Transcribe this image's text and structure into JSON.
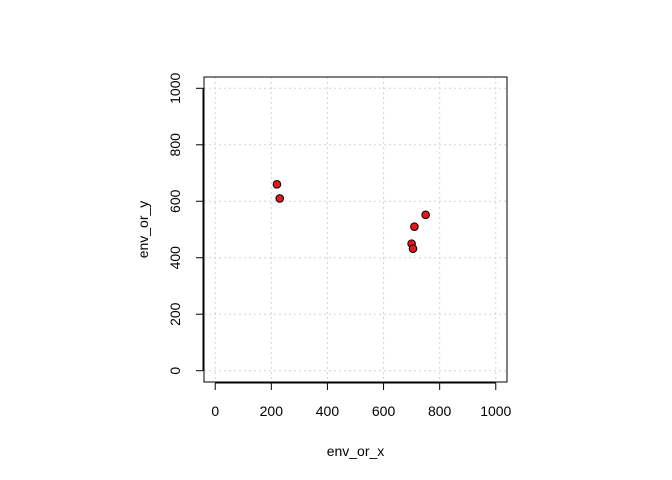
{
  "chart_data": {
    "type": "scatter",
    "title": "",
    "xlabel": "env_or_x",
    "ylabel": "env_or_y",
    "xlim": [
      -40,
      1040
    ],
    "ylim": [
      -40,
      1040
    ],
    "x_ticks": [
      0,
      200,
      400,
      600,
      800,
      1000
    ],
    "y_ticks": [
      0,
      200,
      400,
      600,
      800,
      1000
    ],
    "grid": true,
    "point_color": "#e8161c",
    "point_edge_color": "#000000",
    "points": [
      {
        "x": 220,
        "y": 660
      },
      {
        "x": 230,
        "y": 610
      },
      {
        "x": 750,
        "y": 552
      },
      {
        "x": 710,
        "y": 510
      },
      {
        "x": 700,
        "y": 450
      },
      {
        "x": 705,
        "y": 432
      }
    ]
  }
}
